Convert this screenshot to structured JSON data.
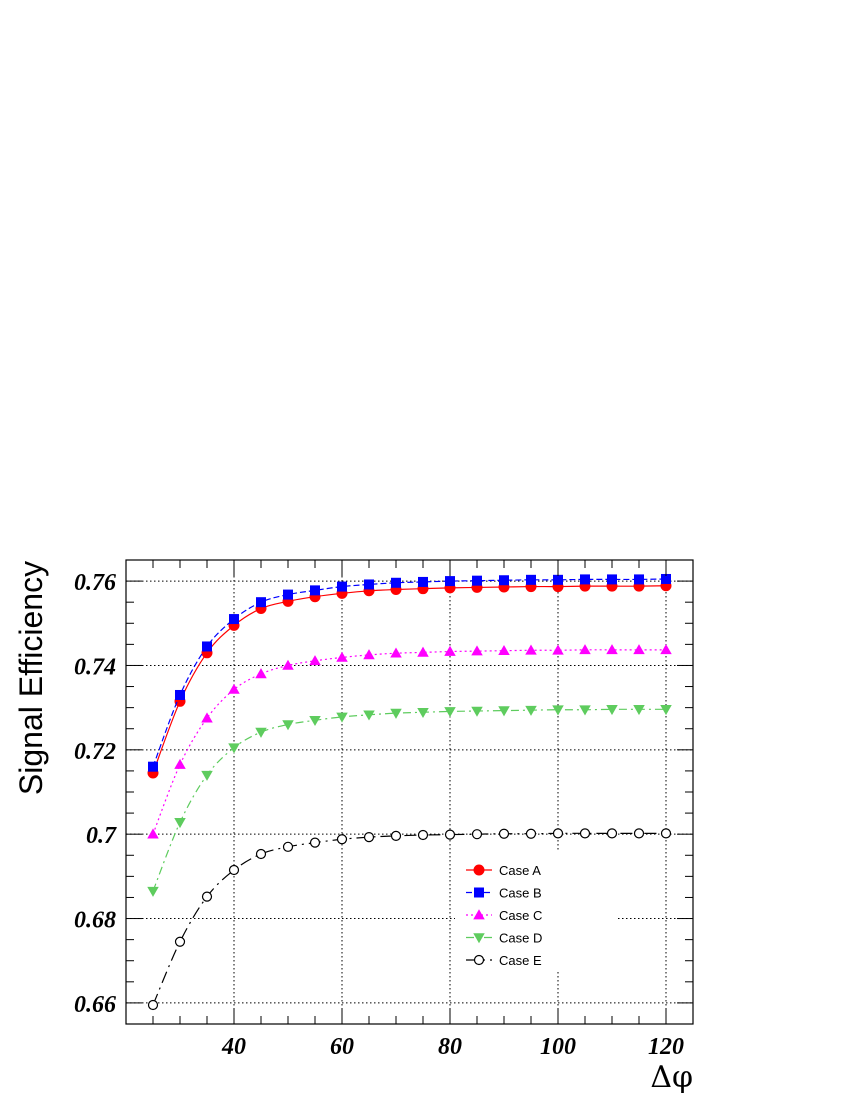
{
  "chart_data": {
    "type": "line",
    "title": "",
    "xlabel": "Δφ",
    "ylabel": "Signal Efficiency",
    "xlim": [
      20,
      125
    ],
    "ylim": [
      0.655,
      0.765
    ],
    "x_ticks": [
      40,
      60,
      80,
      100,
      120
    ],
    "y_ticks": [
      0.66,
      0.68,
      0.7,
      0.72,
      0.74,
      0.76
    ],
    "x_tick_labels": [
      "40",
      "60",
      "80",
      "100",
      "120"
    ],
    "y_tick_labels": [
      "0.66",
      "0.68",
      "0.7",
      "0.72",
      "0.74",
      "0.76"
    ],
    "grid": true,
    "legend_position": "lower-right",
    "x": [
      25,
      30,
      35,
      40,
      45,
      50,
      55,
      60,
      65,
      70,
      75,
      80,
      85,
      90,
      95,
      100,
      105,
      110,
      115,
      120
    ],
    "series": [
      {
        "name": "Case A",
        "color": "#ff0000",
        "marker": "circle-filled",
        "line": "solid",
        "values": [
          0.7145,
          0.7315,
          0.743,
          0.7495,
          0.7535,
          0.7552,
          0.7563,
          0.7571,
          0.7577,
          0.758,
          0.7582,
          0.7584,
          0.7585,
          0.7586,
          0.7587,
          0.7587,
          0.7588,
          0.7588,
          0.7588,
          0.7589
        ]
      },
      {
        "name": "Case B",
        "color": "#0000ff",
        "marker": "square-filled",
        "line": "dashed",
        "values": [
          0.716,
          0.733,
          0.7445,
          0.751,
          0.755,
          0.7568,
          0.7578,
          0.7587,
          0.7592,
          0.7596,
          0.7598,
          0.76,
          0.7601,
          0.7602,
          0.7603,
          0.7603,
          0.7604,
          0.7604,
          0.7604,
          0.7605
        ]
      },
      {
        "name": "Case C",
        "color": "#ff00ff",
        "marker": "triangle-up-filled",
        "line": "dotted",
        "values": [
          0.7,
          0.7165,
          0.7275,
          0.7343,
          0.738,
          0.74,
          0.7411,
          0.7419,
          0.7425,
          0.7429,
          0.7431,
          0.7433,
          0.7434,
          0.7435,
          0.7436,
          0.7436,
          0.7437,
          0.7437,
          0.7437,
          0.7437
        ]
      },
      {
        "name": "Case D",
        "color": "#5ecc5e",
        "marker": "triangle-down-filled",
        "line": "dashdot",
        "values": [
          0.6865,
          0.7028,
          0.714,
          0.7205,
          0.7242,
          0.726,
          0.727,
          0.7278,
          0.7283,
          0.7287,
          0.7289,
          0.7291,
          0.7292,
          0.7293,
          0.7294,
          0.7295,
          0.7295,
          0.7296,
          0.7296,
          0.7296
        ]
      },
      {
        "name": "Case E",
        "color": "#000000",
        "marker": "circle-open",
        "line": "longdashdot",
        "values": [
          0.6595,
          0.6745,
          0.6852,
          0.6915,
          0.6953,
          0.697,
          0.698,
          0.6988,
          0.6993,
          0.6996,
          0.6998,
          0.6999,
          0.7,
          0.7001,
          0.7001,
          0.7002,
          0.7002,
          0.7002,
          0.7002,
          0.7002
        ]
      }
    ]
  }
}
